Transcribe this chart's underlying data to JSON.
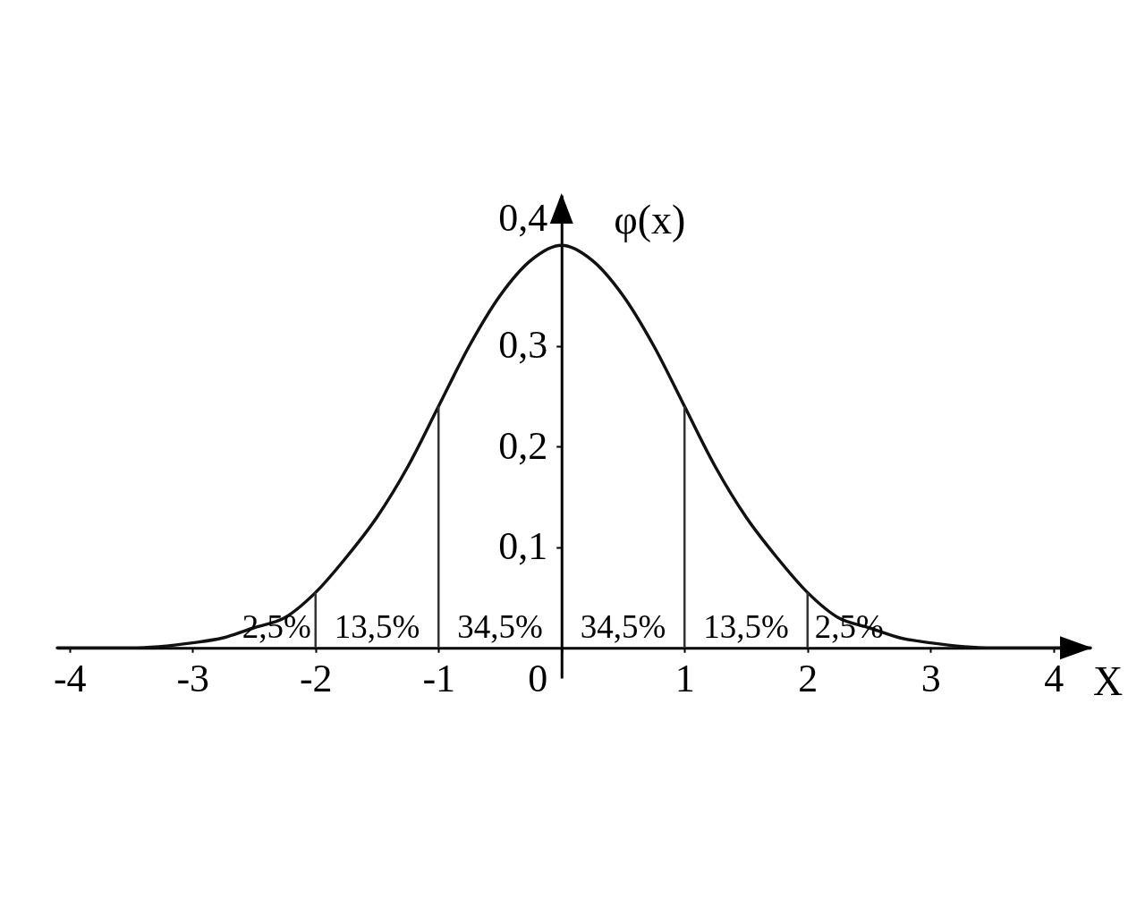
{
  "chart_data": {
    "type": "line",
    "xlabel": "X",
    "ylabel": "φ(x)",
    "x": [
      -4.1,
      -3.5,
      -3,
      -2.75,
      -2.5,
      -2.25,
      -2,
      -1.75,
      -1.5,
      -1.25,
      -1,
      -0.75,
      -0.5,
      -0.25,
      0,
      0.25,
      0.5,
      0.75,
      1,
      1.25,
      1.5,
      1.75,
      2,
      2.25,
      2.5,
      2.75,
      3,
      3.5,
      4.3
    ],
    "series": [
      {
        "color": "#111111",
        "values": [
          0,
          0,
          0.005,
          0.01,
          0.02,
          0.03,
          0.055,
          0.09,
          0.13,
          0.18,
          0.24,
          0.3,
          0.35,
          0.385,
          0.4,
          0.385,
          0.35,
          0.3,
          0.24,
          0.18,
          0.13,
          0.09,
          0.055,
          0.03,
          0.02,
          0.01,
          0.005,
          0,
          0
        ]
      }
    ],
    "xlim": [
      -4.1,
      4.3
    ],
    "ylim": [
      -0.03,
      0.45
    ],
    "xticks": [
      -4,
      -3,
      -2,
      -1,
      0,
      1,
      2,
      3,
      4
    ],
    "yticks": [
      {
        "value": 0.1,
        "label": "0,1"
      },
      {
        "value": 0.2,
        "label": "0,2"
      },
      {
        "value": 0.3,
        "label": "0,3"
      },
      {
        "value": 0.4,
        "label": "0,4"
      }
    ],
    "ref_lines": [
      {
        "axis": "x",
        "value": -2,
        "color": "#333333"
      },
      {
        "axis": "x",
        "value": -1,
        "color": "#333333"
      },
      {
        "axis": "x",
        "value": 1,
        "color": "#333333"
      },
      {
        "axis": "x",
        "value": 2,
        "color": "#333333"
      }
    ],
    "annotations": [
      "2,5%",
      "13,5%",
      "34,5%",
      "34,5%",
      "13,5%",
      "2,5%"
    ],
    "line_style": "solid"
  }
}
